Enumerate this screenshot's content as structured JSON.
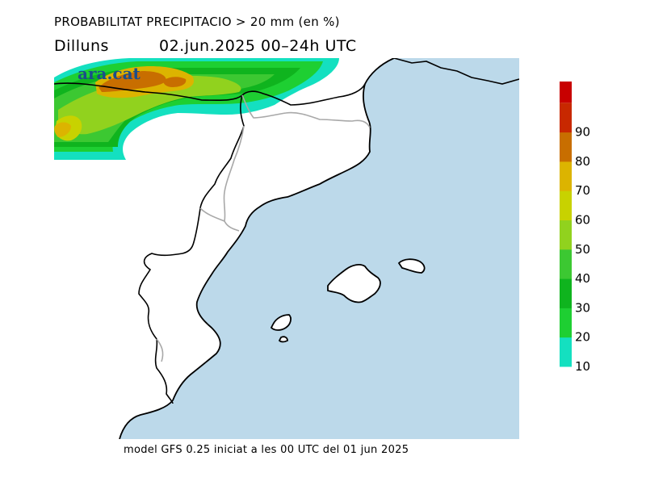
{
  "header": {
    "title": "PROBABILITAT PRECIPITACIO > 20 mm (en %)",
    "day": "Dilluns",
    "date_range": "02.jun.2025 00–24h UTC"
  },
  "footer": {
    "model_info": "model GFS 0.25 iniciat a les 00 UTC del 01 jun 2025"
  },
  "logo": {
    "text": "ara.cat",
    "color": "#1a4e8a"
  },
  "colors": {
    "sea": "#bcd9ea",
    "land": "#ffffff",
    "coast": "#000000",
    "border": "#a8a8a8"
  },
  "legend": {
    "ticks": [
      "10",
      "20",
      "30",
      "40",
      "50",
      "60",
      "70",
      "80",
      "90"
    ],
    "bins": [
      {
        "from": 10,
        "to": 20,
        "color": "#14e0c0"
      },
      {
        "from": 20,
        "to": 30,
        "color": "#1ecf32"
      },
      {
        "from": 30,
        "to": 40,
        "color": "#0fb41e"
      },
      {
        "from": 40,
        "to": 50,
        "color": "#3cc832"
      },
      {
        "from": 50,
        "to": 60,
        "color": "#91d21e"
      },
      {
        "from": 60,
        "to": 70,
        "color": "#c8d200"
      },
      {
        "from": 70,
        "to": 80,
        "color": "#dcb400"
      },
      {
        "from": 80,
        "to": 90,
        "color": "#c86e00"
      },
      {
        "from": 90,
        "to": 100,
        "color": "#c82800"
      },
      {
        "from": 100,
        "to": 110,
        "color": "#c80000"
      }
    ]
  }
}
